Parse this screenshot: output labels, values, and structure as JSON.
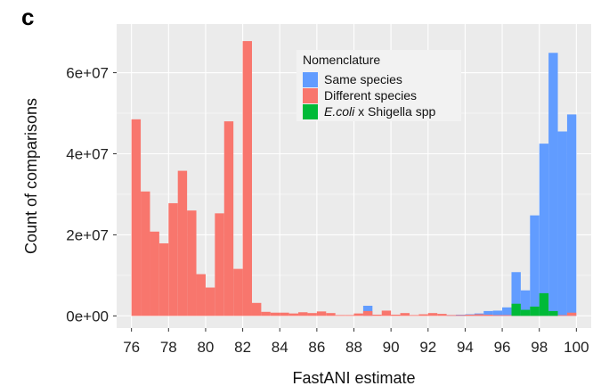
{
  "panel_label": "c",
  "chart_data": {
    "type": "bar",
    "subtype": "histogram",
    "xlabel": "FastANI estimate",
    "ylabel": "Count of comparisons",
    "xlim": [
      75.2,
      100.8
    ],
    "ylim": [
      -3000000,
      72000000
    ],
    "xticks": [
      76,
      78,
      80,
      82,
      84,
      86,
      88,
      90,
      92,
      94,
      96,
      98,
      100
    ],
    "xtick_labels": [
      "76",
      "78",
      "80",
      "82",
      "84",
      "86",
      "88",
      "90",
      "92",
      "94",
      "96",
      "98",
      "100"
    ],
    "yticks": [
      0,
      20000000,
      40000000,
      60000000
    ],
    "ytick_labels": [
      "0e+00",
      "2e+07",
      "4e+07",
      "6e+07"
    ],
    "grid": true,
    "bin_edges": [
      76.0,
      76.5,
      77.0,
      77.5,
      78.0,
      78.5,
      79.0,
      79.5,
      80.0,
      80.5,
      81.0,
      81.5,
      82.0,
      82.5,
      83.0,
      83.5,
      84.0,
      84.5,
      85.0,
      85.5,
      86.0,
      86.5,
      87.0,
      87.5,
      88.0,
      88.5,
      89.0,
      89.5,
      90.0,
      90.5,
      91.0,
      91.5,
      92.0,
      92.5,
      93.0,
      93.5,
      94.0,
      94.5,
      95.0,
      95.5,
      96.0,
      96.5,
      97.0,
      97.5,
      98.0,
      98.5,
      99.0,
      99.5,
      100.0
    ],
    "series": [
      {
        "name": "Same species",
        "color": "#619CFF",
        "values": [
          0,
          0,
          0,
          0,
          0,
          0,
          0,
          0,
          0,
          0,
          0,
          0,
          0,
          0,
          0,
          0,
          0,
          0,
          0,
          0,
          0,
          0,
          0,
          0,
          0,
          2500000,
          0,
          0,
          0,
          0,
          0,
          0,
          0,
          0,
          200000,
          300000,
          400000,
          600000,
          1200000,
          1300000,
          2100000,
          10800000,
          6300000,
          24800000,
          42500000,
          64900000,
          45500000,
          49700000
        ]
      },
      {
        "name": "Different species",
        "color": "#F8766D",
        "values": [
          48500000,
          30700000,
          20800000,
          17900000,
          27800000,
          35800000,
          26000000,
          10300000,
          7000000,
          25300000,
          48000000,
          11600000,
          67800000,
          3200000,
          1000000,
          800000,
          800000,
          600000,
          900000,
          700000,
          1100000,
          700000,
          200000,
          200000,
          600000,
          1200000,
          300000,
          1300000,
          300000,
          700000,
          200000,
          400000,
          700000,
          500000,
          200000,
          200000,
          300000,
          400000,
          300000,
          200000,
          200000,
          200000,
          200000,
          200000,
          200000,
          200000,
          200000,
          800000
        ]
      },
      {
        "name": "E.coli x Shigella spp",
        "color": "#00BA38",
        "values": [
          0,
          0,
          0,
          0,
          0,
          0,
          0,
          0,
          0,
          0,
          0,
          0,
          0,
          0,
          0,
          0,
          0,
          0,
          0,
          0,
          0,
          0,
          0,
          0,
          0,
          0,
          0,
          0,
          0,
          0,
          0,
          0,
          0,
          0,
          0,
          0,
          0,
          0,
          0,
          0,
          0,
          3000000,
          1500000,
          2300000,
          5600000,
          1200000,
          0,
          0
        ]
      }
    ],
    "legend": {
      "title": "Nomenclature",
      "placement": "top-right",
      "entries": [
        {
          "label": "Same species",
          "color": "#619CFF",
          "italic_part": "",
          "rest": "Same species"
        },
        {
          "label": "Different species",
          "color": "#F8766D",
          "italic_part": "",
          "rest": "Different species"
        },
        {
          "label": "E.coli x Shigella spp",
          "color": "#00BA38",
          "italic_part": "E.coli",
          "rest": " x Shigella spp"
        }
      ]
    },
    "background_color": "#EBEBEB",
    "grid_color": "#FFFFFF"
  }
}
